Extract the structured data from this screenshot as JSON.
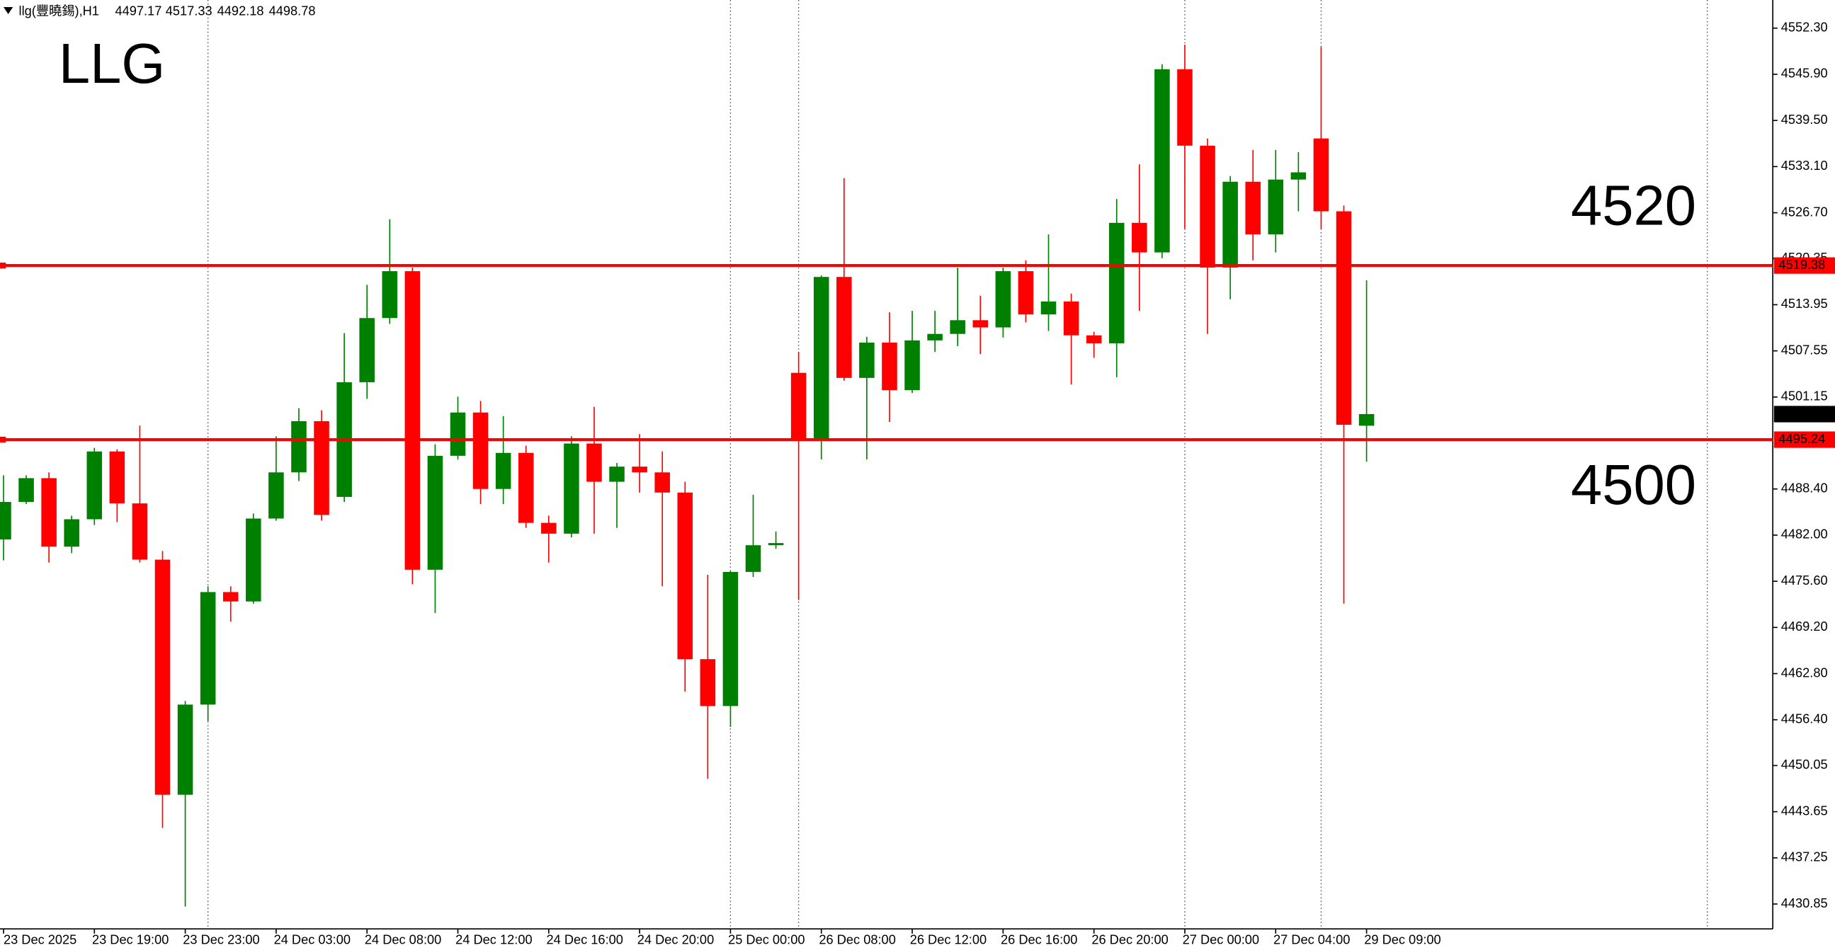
{
  "header": {
    "symbol": "llg(豐曉錫),H1"
  },
  "chart_data": {
    "type": "candlestick",
    "annotations": [
      "LLG",
      "4520",
      "4500"
    ],
    "categories": [
      "23 Dec 2025",
      null,
      null,
      null,
      "23 Dec 19:00",
      null,
      null,
      null,
      "23 Dec 23:00",
      null,
      null,
      null,
      "24 Dec 03:00",
      null,
      null,
      null,
      "24 Dec 08:00",
      null,
      null,
      null,
      "24 Dec 12:00",
      null,
      null,
      null,
      "24 Dec 16:00",
      null,
      null,
      null,
      "24 Dec 20:00",
      null,
      null,
      null,
      "25 Dec 00:00",
      null,
      null,
      null,
      "26 Dec 08:00",
      null,
      null,
      null,
      "26 Dec 12:00",
      null,
      null,
      null,
      "26 Dec 16:00",
      null,
      null,
      null,
      "26 Dec 20:00",
      null,
      null,
      null,
      "27 Dec 00:00",
      null,
      null,
      null,
      "27 Dec 04:00",
      null,
      null,
      null,
      "29 Dec 09:00"
    ],
    "open": [
      4481.4,
      4486.6,
      4489.9,
      4480.4,
      4484.2,
      4493.6,
      4486.4,
      4478.6,
      4446.0,
      4458.5,
      4474.1,
      4472.8,
      4484.3,
      4490.7,
      4497.8,
      4487.3,
      4503.2,
      4512.1,
      4518.6,
      4477.2,
      4493.0,
      4499.0,
      4488.4,
      4493.4,
      4483.7,
      4482.2,
      4494.7,
      4489.4,
      4491.5,
      4490.7,
      4487.9,
      4464.8,
      4458.3,
      4476.9,
      4480.6,
      4504.5,
      4495.1,
      4517.8,
      4503.8,
      4508.7,
      4502.1,
      4509.0,
      4509.9,
      4511.8,
      4510.8,
      4518.6,
      4512.6,
      4514.4,
      4509.7,
      4508.6,
      4525.3,
      4521.2,
      4546.6,
      4536.0,
      4519.1,
      4531.0,
      4523.7,
      4531.3,
      4537.0,
      4526.9,
      4497.17
    ],
    "high": [
      4490.3,
      4490.3,
      4490.7,
      4484.7,
      4494.1,
      4493.9,
      4497.2,
      4479.8,
      4459.0,
      4474.9,
      4474.9,
      4485.0,
      4495.7,
      4499.6,
      4499.3,
      4510.0,
      4516.7,
      4525.8,
      4519.1,
      4494.6,
      4501.2,
      4500.6,
      4498.5,
      4494.4,
      4484.7,
      4495.7,
      4499.8,
      4492.0,
      4496.0,
      4493.6,
      4489.4,
      4476.5,
      4477.0,
      4487.6,
      4482.5,
      4507.4,
      4518.0,
      4531.5,
      4509.5,
      4512.9,
      4513.1,
      4513.1,
      4519.1,
      4515.2,
      4519.1,
      4520.1,
      4523.7,
      4515.5,
      4510.2,
      4528.6,
      4533.4,
      4547.3,
      4550.0,
      4537.0,
      4531.8,
      4535.4,
      4535.4,
      4535.1,
      4549.7,
      4527.7,
      4517.33
    ],
    "low": [
      4478.5,
      4486.3,
      4478.2,
      4479.5,
      4483.4,
      4483.8,
      4478.2,
      4441.4,
      4430.5,
      4456.2,
      4470.0,
      4472.5,
      4484.0,
      4489.5,
      4484.0,
      4486.6,
      4500.9,
      4511.3,
      4475.2,
      4471.2,
      4492.5,
      4486.3,
      4486.3,
      4483.0,
      4478.2,
      4481.7,
      4482.2,
      4483.0,
      4487.9,
      4474.9,
      4460.3,
      4448.2,
      4455.4,
      4476.2,
      4480.1,
      4473.0,
      4492.5,
      4503.4,
      4492.5,
      4497.7,
      4501.7,
      4507.4,
      4508.2,
      4507.1,
      4509.4,
      4511.5,
      4510.3,
      4502.9,
      4506.6,
      4503.9,
      4513.1,
      4520.4,
      4524.5,
      4509.9,
      4514.7,
      4520.1,
      4521.2,
      4526.9,
      4524.5,
      4472.5,
      4492.18
    ],
    "close": [
      4486.6,
      4489.9,
      4480.4,
      4484.2,
      4493.6,
      4486.4,
      4478.6,
      4446.0,
      4458.5,
      4474.1,
      4472.8,
      4484.3,
      4490.7,
      4497.8,
      4484.8,
      4503.2,
      4512.1,
      4518.6,
      4477.2,
      4493.0,
      4499.0,
      4488.4,
      4493.4,
      4483.7,
      4482.2,
      4494.7,
      4489.4,
      4491.5,
      4490.7,
      4487.9,
      4464.8,
      4458.3,
      4476.9,
      4480.6,
      4480.9,
      4495.1,
      4517.8,
      4503.8,
      4508.7,
      4502.1,
      4509.0,
      4509.9,
      4511.8,
      4510.8,
      4518.6,
      4512.6,
      4514.4,
      4509.7,
      4508.6,
      4525.3,
      4521.2,
      4546.6,
      4536.0,
      4519.1,
      4531.0,
      4523.7,
      4531.3,
      4532.3,
      4526.9,
      4497.3,
      4498.78
    ],
    "up_color": "#008000",
    "down_color": "#ff0000",
    "ylim": [
      4427.4,
      4556.2
    ],
    "yticks": [
      {
        "value": 4552.3,
        "label": "4552.30"
      },
      {
        "value": 4545.9,
        "label": "4545.90"
      },
      {
        "value": 4539.5,
        "label": "4539.50"
      },
      {
        "value": 4533.1,
        "label": "4533.10"
      },
      {
        "value": 4526.7,
        "label": "4526.70"
      },
      {
        "value": 4520.35,
        "label": "4520.35"
      },
      4513.95,
      4507.55,
      4501.15,
      {
        "value": 4488.4,
        "label": "4488.40"
      },
      {
        "value": 4482.0,
        "label": "4482.00"
      },
      {
        "value": 4475.6,
        "label": "4475.60"
      },
      {
        "value": 4469.2,
        "label": "4469.20"
      },
      {
        "value": 4462.8,
        "label": "4462.80"
      },
      {
        "value": 4456.4,
        "label": "4456.40"
      },
      4450.05,
      4443.65,
      4437.25,
      4430.85
    ],
    "hlines": [
      {
        "value": 4519.38,
        "color": "#ff0000"
      },
      {
        "value": 4495.24,
        "color": "#ff0000"
      }
    ],
    "grid": false
  }
}
